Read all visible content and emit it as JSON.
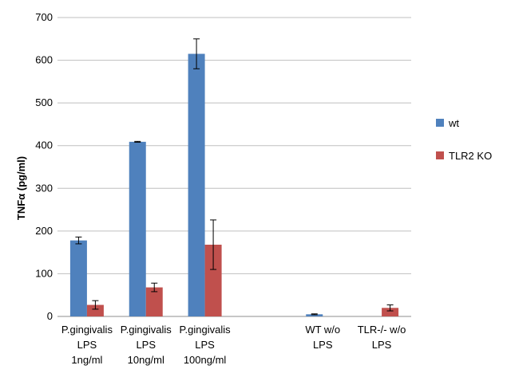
{
  "chart_data": {
    "type": "bar",
    "ylabel": "TNFα (pg/ml)",
    "ylim": [
      0,
      700
    ],
    "yticks": [
      0,
      100,
      200,
      300,
      400,
      500,
      600,
      700
    ],
    "grid": true,
    "legend_position": "right",
    "categories": [
      [
        "P.gingivalis",
        "LPS",
        "1ng/ml"
      ],
      [
        "P.gingivalis",
        "LPS",
        "10ng/ml"
      ],
      [
        "P.gingivalis",
        "LPS",
        "100ng/ml"
      ],
      [
        "",
        "",
        ""
      ],
      [
        "WT w/o",
        "LPS",
        ""
      ],
      [
        "TLR-/- w/o",
        "LPS",
        ""
      ]
    ],
    "series": [
      {
        "name": "wt",
        "color": "#4f81bd",
        "values": [
          178,
          409,
          615,
          null,
          5,
          null
        ],
        "errors": [
          8,
          1,
          35,
          null,
          1,
          null
        ]
      },
      {
        "name": "TLR2 KO",
        "color": "#c0504d",
        "values": [
          27,
          68,
          168,
          null,
          null,
          20
        ],
        "errors": [
          10,
          10,
          58,
          null,
          null,
          7
        ]
      }
    ]
  }
}
